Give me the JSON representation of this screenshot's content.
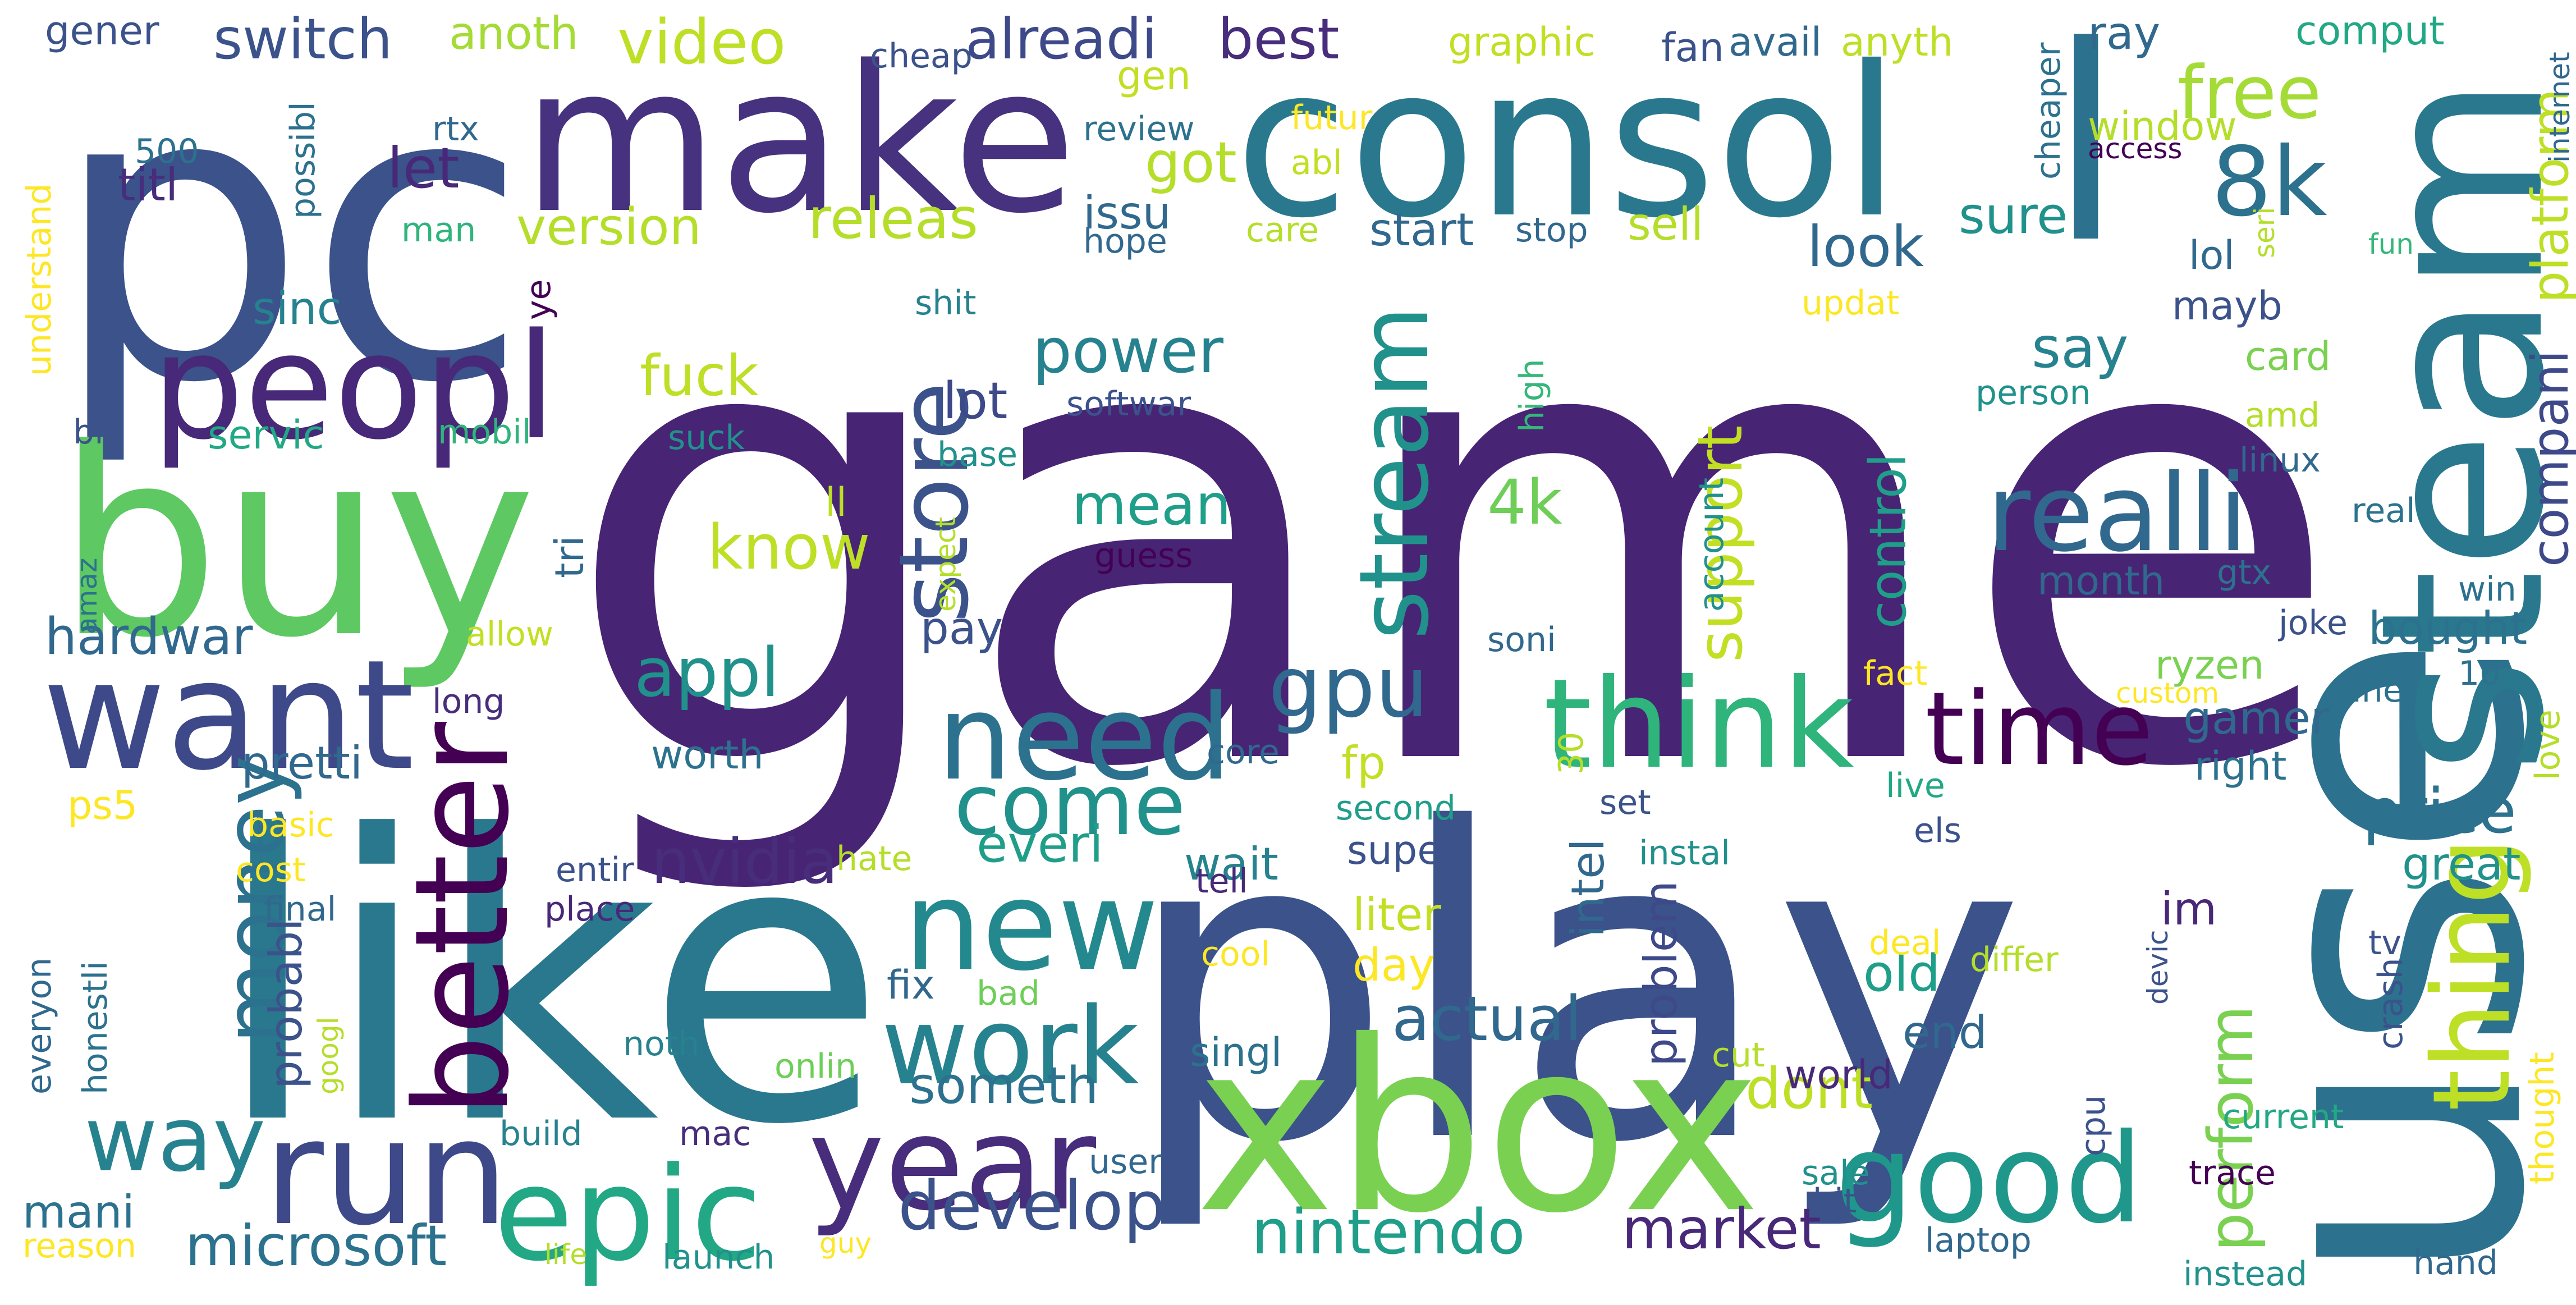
{
  "wordcloud": {
    "background": "#ffffff",
    "palette": [
      "#440154",
      "#482878",
      "#3e4989",
      "#31688e",
      "#26828e",
      "#1f9e89",
      "#35b779",
      "#6ece58",
      "#b5de2b",
      "#fde725"
    ],
    "words": [
      {
        "text": "game",
        "color": "#482475"
      },
      {
        "text": "play",
        "color": "#3b528b"
      },
      {
        "text": "pc",
        "color": "#3b528b"
      },
      {
        "text": "like",
        "color": "#2a788e"
      },
      {
        "text": "use",
        "color": "#2c718e"
      },
      {
        "text": "consol",
        "color": "#2a788e"
      },
      {
        "text": "make",
        "color": "#46327e"
      },
      {
        "text": "steam",
        "color": "#2a788e"
      },
      {
        "text": "buy",
        "color": "#5ec962"
      },
      {
        "text": "xbox",
        "color": "#7ad151"
      },
      {
        "text": "l",
        "color": "#2c718e"
      },
      {
        "text": "want",
        "color": "#3e4989"
      },
      {
        "text": "peopl",
        "color": "#482878"
      },
      {
        "text": "run",
        "color": "#3e4989"
      },
      {
        "text": "year",
        "color": "#472d7b"
      },
      {
        "text": "epic",
        "color": "#22a884"
      },
      {
        "text": "think",
        "color": "#2fb47c"
      },
      {
        "text": "good",
        "color": "#1f988b"
      },
      {
        "text": "better",
        "color": "#440154"
      },
      {
        "text": "money",
        "color": "#2c728e"
      },
      {
        "text": "need",
        "color": "#2c728e"
      },
      {
        "text": "new",
        "color": "#23898e"
      },
      {
        "text": "realli",
        "color": "#31688e"
      },
      {
        "text": "work",
        "color": "#26828e"
      },
      {
        "text": "thing",
        "color": "#bddf26"
      },
      {
        "text": "time",
        "color": "#440154"
      },
      {
        "text": "store",
        "color": "#3b528b"
      },
      {
        "text": "stream",
        "color": "#21918c"
      },
      {
        "text": "8k",
        "color": "#2c718e"
      },
      {
        "text": "way",
        "color": "#26828e"
      },
      {
        "text": "come",
        "color": "#21918c"
      },
      {
        "text": "gpu",
        "color": "#31688e"
      },
      {
        "text": "develop",
        "color": "#3b528b"
      },
      {
        "text": "nintendo",
        "color": "#1f9e89"
      },
      {
        "text": "microsoft",
        "color": "#2c728e"
      },
      {
        "text": "market",
        "color": "#482878"
      },
      {
        "text": "free",
        "color": "#a5db36"
      },
      {
        "text": "switch",
        "color": "#3b528b"
      },
      {
        "text": "video",
        "color": "#bddf26"
      },
      {
        "text": "alreadi",
        "color": "#3e4989"
      },
      {
        "text": "best",
        "color": "#472d7b"
      },
      {
        "text": "perform",
        "color": "#7ad151"
      },
      {
        "text": "price",
        "color": "#2c718e"
      },
      {
        "text": "appl",
        "color": "#21918c"
      },
      {
        "text": "nvidia",
        "color": "#472d7b"
      },
      {
        "text": "actual",
        "color": "#31688e"
      },
      {
        "text": "power",
        "color": "#26828e"
      },
      {
        "text": "releas",
        "color": "#b5de2b"
      },
      {
        "text": "fuck",
        "color": "#bddf26"
      },
      {
        "text": "know",
        "color": "#bddf26"
      },
      {
        "text": "support",
        "color": "#c2df23"
      },
      {
        "text": "control",
        "color": "#1f9e89"
      },
      {
        "text": "mean",
        "color": "#1f9e89"
      },
      {
        "text": "4k",
        "color": "#6ece58"
      },
      {
        "text": "hardwar",
        "color": "#31688e"
      },
      {
        "text": "compani",
        "color": "#3e4989"
      },
      {
        "text": "platform",
        "color": "#bddf26"
      },
      {
        "text": "look",
        "color": "#31688e"
      },
      {
        "text": "say",
        "color": "#26828e"
      },
      {
        "text": "someth",
        "color": "#2c728e"
      },
      {
        "text": "dont",
        "color": "#bddf26"
      },
      {
        "text": "everi",
        "color": "#1f9e89"
      },
      {
        "text": "got",
        "color": "#b5de2b"
      },
      {
        "text": "let",
        "color": "#482878"
      },
      {
        "text": "version",
        "color": "#b5de2b"
      },
      {
        "text": "sell",
        "color": "#b5de2b"
      },
      {
        "text": "start",
        "color": "#31688e"
      },
      {
        "text": "gen",
        "color": "#c2df23"
      },
      {
        "text": "sure",
        "color": "#21918c"
      },
      {
        "text": "lot",
        "color": "#3e4989"
      },
      {
        "text": "pay",
        "color": "#3b528b"
      },
      {
        "text": "probabl",
        "color": "#3b528b"
      },
      {
        "text": "pretti",
        "color": "#31688e"
      },
      {
        "text": "servic",
        "color": "#22a884"
      },
      {
        "text": "mani",
        "color": "#2c728e"
      },
      {
        "text": "end",
        "color": "#31688e"
      },
      {
        "text": "old",
        "color": "#1f9e89"
      },
      {
        "text": "intel",
        "color": "#31688e"
      },
      {
        "text": "problem",
        "color": "#3e4989"
      },
      {
        "text": "anoth",
        "color": "#a5db36"
      },
      {
        "text": "titl",
        "color": "#472d7b"
      },
      {
        "text": "issu",
        "color": "#31688e"
      },
      {
        "text": "sinc",
        "color": "#26828e"
      },
      {
        "text": "tri",
        "color": "#31688e"
      },
      {
        "text": "ps5",
        "color": "#fde725"
      },
      {
        "text": "fp",
        "color": "#c2df23"
      },
      {
        "text": "worth",
        "color": "#2c728e"
      },
      {
        "text": "wait",
        "color": "#26828e"
      },
      {
        "text": "super",
        "color": "#3b528b"
      },
      {
        "text": "liter",
        "color": "#c2df23"
      },
      {
        "text": "day",
        "color": "#fde725"
      },
      {
        "text": "fix",
        "color": "#31688e"
      },
      {
        "text": "singl",
        "color": "#2c728e"
      },
      {
        "text": "month",
        "color": "#31688e"
      },
      {
        "text": "bought",
        "color": "#2c728e"
      },
      {
        "text": "ryzen",
        "color": "#7ad151"
      },
      {
        "text": "gamer",
        "color": "#31688e"
      },
      {
        "text": "right",
        "color": "#2c728e"
      },
      {
        "text": "great",
        "color": "#21918c"
      },
      {
        "text": "im",
        "color": "#482878"
      },
      {
        "text": "world",
        "color": "#482878"
      },
      {
        "text": "mayb",
        "color": "#3b528b"
      },
      {
        "text": "card",
        "color": "#7ad151"
      },
      {
        "text": "lol",
        "color": "#31688e"
      },
      {
        "text": "window",
        "color": "#b5de2b"
      },
      {
        "text": "comput",
        "color": "#22a884"
      },
      {
        "text": "ray",
        "color": "#31688e"
      },
      {
        "text": "avail",
        "color": "#31688e"
      },
      {
        "text": "fan",
        "color": "#3b528b"
      },
      {
        "text": "anyth",
        "color": "#bddf26"
      },
      {
        "text": "graphic",
        "color": "#c2df23"
      },
      {
        "text": "cheap",
        "color": "#3b528b"
      },
      {
        "text": "gener",
        "color": "#3b528b"
      },
      {
        "text": "review",
        "color": "#2c728e"
      },
      {
        "text": "hope",
        "color": "#31688e"
      },
      {
        "text": "futur",
        "color": "#fde725"
      },
      {
        "text": "abl",
        "color": "#c2df23"
      },
      {
        "text": "care",
        "color": "#b5de2b"
      },
      {
        "text": "stop",
        "color": "#31688e"
      },
      {
        "text": "man",
        "color": "#2fb47c"
      },
      {
        "text": "rtx",
        "color": "#31688e"
      },
      {
        "text": "500",
        "color": "#2c718e"
      },
      {
        "text": "possibl",
        "color": "#2c718e"
      },
      {
        "text": "understand",
        "color": "#fde725"
      },
      {
        "text": "ye",
        "color": "#440154"
      },
      {
        "text": "shit",
        "color": "#26828e"
      },
      {
        "text": "softwar",
        "color": "#3b528b"
      },
      {
        "text": "high",
        "color": "#35b779"
      },
      {
        "text": "person",
        "color": "#21918c"
      },
      {
        "text": "amd",
        "color": "#b5de2b"
      },
      {
        "text": "big",
        "color": "#3b528b"
      },
      {
        "text": "mobil",
        "color": "#2fb47c"
      },
      {
        "text": "suck",
        "color": "#21918c"
      },
      {
        "text": "base",
        "color": "#21918c"
      },
      {
        "text": "ll",
        "color": "#bddf26"
      },
      {
        "text": "guess",
        "color": "#440154"
      },
      {
        "text": "expect",
        "color": "#b5de2b"
      },
      {
        "text": "account",
        "color": "#21918c"
      },
      {
        "text": "linux",
        "color": "#31688e"
      },
      {
        "text": "real",
        "color": "#2c728e"
      },
      {
        "text": "gtx",
        "color": "#2c728e"
      },
      {
        "text": "win",
        "color": "#2c718e"
      },
      {
        "text": "joke",
        "color": "#3b528b"
      },
      {
        "text": "amaz",
        "color": "#2c728e"
      },
      {
        "text": "allow",
        "color": "#c2df23"
      },
      {
        "text": "long",
        "color": "#472d7b"
      },
      {
        "text": "soni",
        "color": "#31688e"
      },
      {
        "text": "fact",
        "color": "#fde725"
      },
      {
        "text": "custom",
        "color": "#fde725"
      },
      {
        "text": "fine",
        "color": "#2c718e"
      },
      {
        "text": "10",
        "color": "#2c718e"
      },
      {
        "text": "love",
        "color": "#b5de2b"
      },
      {
        "text": "core",
        "color": "#31688e"
      },
      {
        "text": "second",
        "color": "#1f9e89"
      },
      {
        "text": "30",
        "color": "#b5de2b"
      },
      {
        "text": "live",
        "color": "#22a884"
      },
      {
        "text": "els",
        "color": "#3b528b"
      },
      {
        "text": "set",
        "color": "#3b528b"
      },
      {
        "text": "instal",
        "color": "#21918c"
      },
      {
        "text": "basic",
        "color": "#fde725"
      },
      {
        "text": "cost",
        "color": "#fde725"
      },
      {
        "text": "final",
        "color": "#31688e"
      },
      {
        "text": "entir",
        "color": "#3b528b"
      },
      {
        "text": "place",
        "color": "#482878"
      },
      {
        "text": "hate",
        "color": "#b5de2b"
      },
      {
        "text": "tell",
        "color": "#482878"
      },
      {
        "text": "cool",
        "color": "#fde725"
      },
      {
        "text": "deal",
        "color": "#fde725"
      },
      {
        "text": "differ",
        "color": "#b5de2b"
      },
      {
        "text": "tv",
        "color": "#3b528b"
      },
      {
        "text": "crash",
        "color": "#3b528b"
      },
      {
        "text": "devic",
        "color": "#3b528b"
      },
      {
        "text": "everyon",
        "color": "#31688e"
      },
      {
        "text": "honestli",
        "color": "#2c728e"
      },
      {
        "text": "googl",
        "color": "#b5de2b"
      },
      {
        "text": "noth",
        "color": "#26828e"
      },
      {
        "text": "bad",
        "color": "#6ece58"
      },
      {
        "text": "onlin",
        "color": "#6ece58"
      },
      {
        "text": "cut",
        "color": "#b5de2b"
      },
      {
        "text": "build",
        "color": "#26828e"
      },
      {
        "text": "mac",
        "color": "#472d7b"
      },
      {
        "text": "user",
        "color": "#31688e"
      },
      {
        "text": "sale",
        "color": "#21918c"
      },
      {
        "text": "bit",
        "color": "#3b528b"
      },
      {
        "text": "cpu",
        "color": "#3b528b"
      },
      {
        "text": "current",
        "color": "#22a884"
      },
      {
        "text": "thought",
        "color": "#fde725"
      },
      {
        "text": "trace",
        "color": "#440154"
      },
      {
        "text": "laptop",
        "color": "#31688e"
      },
      {
        "text": "reason",
        "color": "#fde725"
      },
      {
        "text": "life",
        "color": "#b5de2b"
      },
      {
        "text": "launch",
        "color": "#21918c"
      },
      {
        "text": "guy",
        "color": "#fde725"
      },
      {
        "text": "instead",
        "color": "#21918c"
      },
      {
        "text": "hand",
        "color": "#31688e"
      },
      {
        "text": "cheaper",
        "color": "#2c718e"
      },
      {
        "text": "seri",
        "color": "#b5de2b"
      },
      {
        "text": "fun",
        "color": "#35b779"
      },
      {
        "text": "internet",
        "color": "#31688e"
      },
      {
        "text": "updat",
        "color": "#fde725"
      },
      {
        "text": "access",
        "color": "#440154"
      }
    ]
  }
}
